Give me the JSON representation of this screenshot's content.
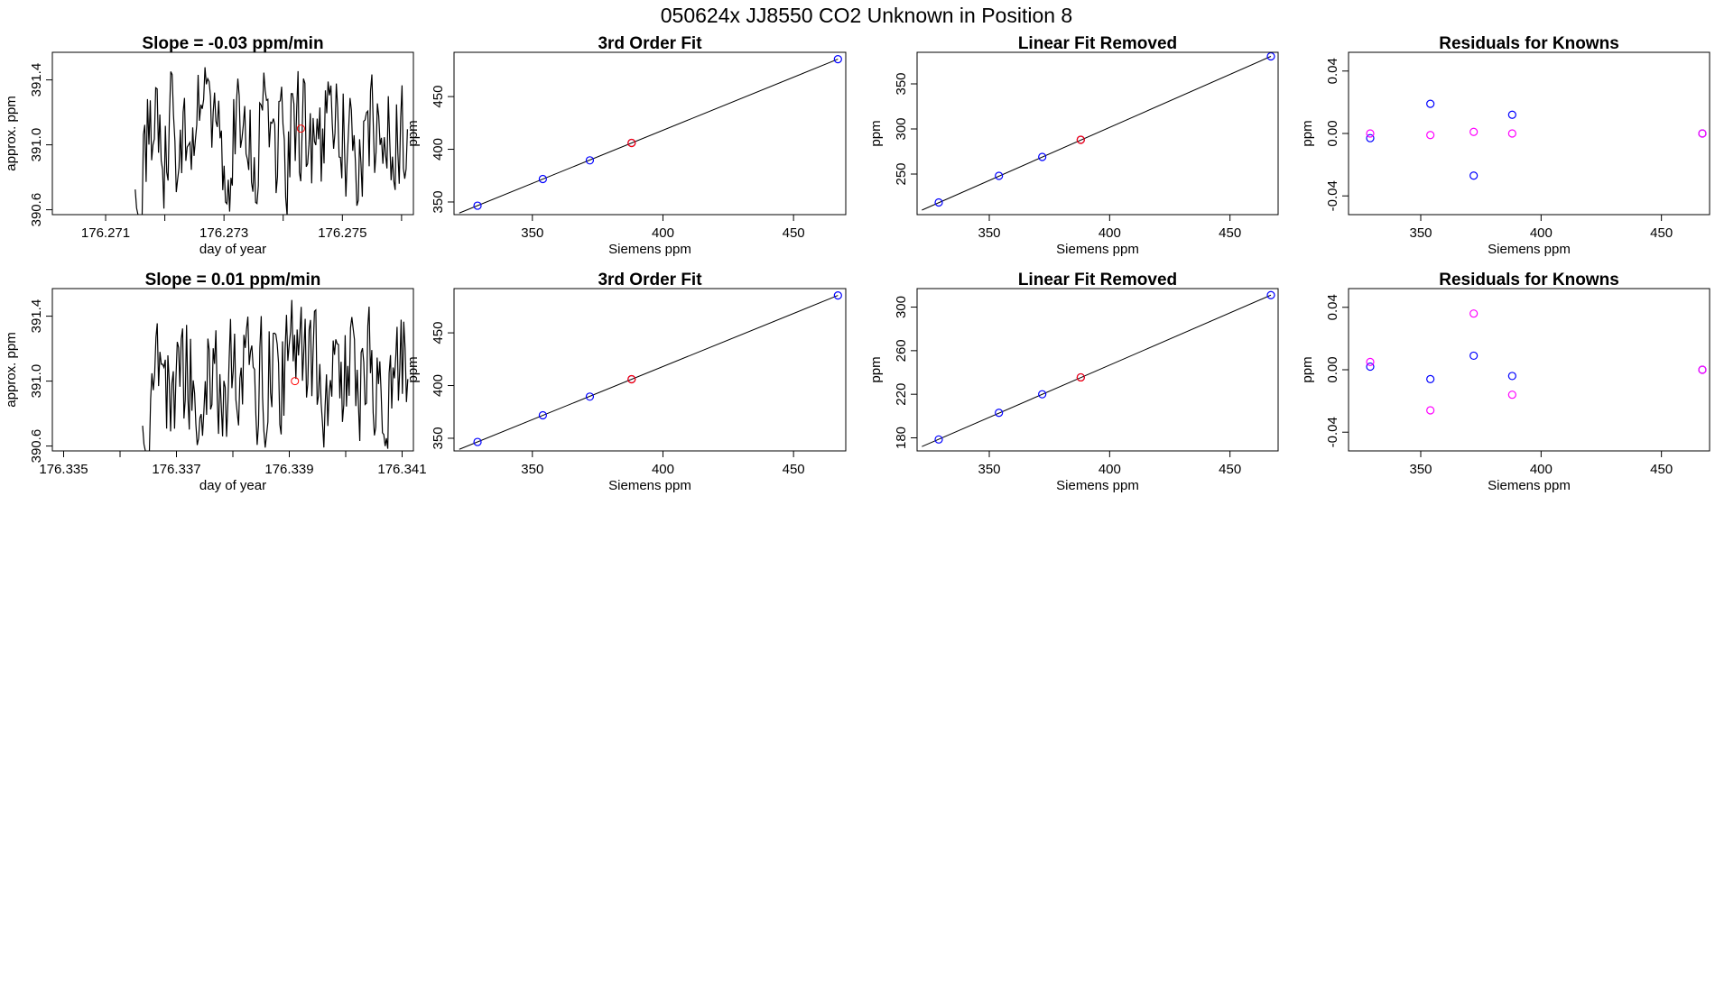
{
  "figure": {
    "title": "050624x      JJ8550   CO2 Unknown in Position  8"
  },
  "colors": {
    "line": "#000000",
    "reference_point": "#ff0000",
    "known_primary": "#0000ff",
    "known_secondary": "#ff00ff"
  },
  "chart_data": [
    {
      "type": "line",
      "title": "Slope =  -0.03  ppm/min",
      "xlabel": "day of year",
      "ylabel": "approx. ppm",
      "xlim": [
        176.2701,
        176.2762
      ],
      "ylim": [
        390.57,
        391.57
      ],
      "xticks": [
        176.271,
        176.272,
        176.273,
        176.274,
        176.275,
        176.276
      ],
      "xtick_labels": [
        "176.271",
        "",
        "176.273",
        "",
        "176.275",
        ""
      ],
      "yticks": [
        390.6,
        391.0,
        391.4
      ],
      "ytick_labels": [
        "390.6",
        "391.0",
        "391.4"
      ],
      "grid": false,
      "trace": {
        "x_start": 176.2715,
        "x_end": 176.2761,
        "n": 200,
        "center": 391.05,
        "spread": 0.58,
        "seed": 8550
      },
      "marker": {
        "x": 176.2743,
        "y": 391.1
      }
    },
    {
      "type": "scatter",
      "title": "3rd Order Fit",
      "xlabel": "Siemens ppm",
      "ylabel": "ppm",
      "xlim": [
        320,
        470
      ],
      "ylim": [
        338,
        492
      ],
      "xticks": [
        350,
        400,
        450
      ],
      "yticks": [
        350,
        400,
        450
      ],
      "grid": false,
      "fit_line": {
        "x": [
          322,
          467
        ],
        "y": [
          339.5,
          485.5
        ]
      },
      "points": [
        {
          "x": 329,
          "y": 346.5,
          "color": "known_primary"
        },
        {
          "x": 354,
          "y": 371.8,
          "color": "known_primary"
        },
        {
          "x": 372,
          "y": 389.5,
          "color": "known_primary"
        },
        {
          "x": 388,
          "y": 406,
          "color": "known_primary"
        },
        {
          "x": 467,
          "y": 485.5,
          "color": "known_primary"
        },
        {
          "x": 388,
          "y": 406,
          "color": "reference_point"
        }
      ]
    },
    {
      "type": "scatter",
      "title": "Linear Fit Removed",
      "xlabel": "Siemens ppm",
      "ylabel": "ppm",
      "xlim": [
        320,
        470
      ],
      "ylim": [
        205,
        385
      ],
      "xticks": [
        350,
        400,
        450
      ],
      "yticks": [
        250,
        300,
        350
      ],
      "grid": false,
      "fit_line": {
        "x": [
          322,
          467
        ],
        "y": [
          210,
          380.5
        ]
      },
      "points": [
        {
          "x": 329,
          "y": 218.5,
          "color": "known_primary"
        },
        {
          "x": 354,
          "y": 248,
          "color": "known_primary"
        },
        {
          "x": 372,
          "y": 269,
          "color": "known_primary"
        },
        {
          "x": 388,
          "y": 288,
          "color": "known_primary"
        },
        {
          "x": 467,
          "y": 380.5,
          "color": "known_primary"
        },
        {
          "x": 388,
          "y": 288,
          "color": "reference_point"
        }
      ]
    },
    {
      "type": "scatter",
      "title": "Residuals for Knowns",
      "xlabel": "Siemens ppm",
      "ylabel": "ppm",
      "xlim": [
        320,
        470
      ],
      "ylim": [
        -0.052,
        0.052
      ],
      "xticks": [
        350,
        400,
        450
      ],
      "yticks": [
        -0.04,
        0.0,
        0.04
      ],
      "ytick_labels": [
        "-0.04",
        "0.00",
        "0.04"
      ],
      "grid": false,
      "points": [
        {
          "x": 329,
          "y": -0.003,
          "color": "known_primary"
        },
        {
          "x": 354,
          "y": 0.019,
          "color": "known_primary"
        },
        {
          "x": 372,
          "y": -0.027,
          "color": "known_primary"
        },
        {
          "x": 388,
          "y": 0.012,
          "color": "known_primary"
        },
        {
          "x": 467,
          "y": 0.0,
          "color": "known_primary"
        },
        {
          "x": 329,
          "y": 0.0,
          "color": "known_secondary"
        },
        {
          "x": 354,
          "y": -0.001,
          "color": "known_secondary"
        },
        {
          "x": 372,
          "y": 0.001,
          "color": "known_secondary"
        },
        {
          "x": 388,
          "y": 0.0,
          "color": "known_secondary"
        },
        {
          "x": 467,
          "y": 0.0,
          "color": "known_secondary"
        }
      ]
    },
    {
      "type": "line",
      "title": "Slope =  0.01  ppm/min",
      "xlabel": "day of year",
      "ylabel": "approx. ppm",
      "xlim": [
        176.3348,
        176.3412
      ],
      "ylim": [
        390.57,
        391.57
      ],
      "xticks": [
        176.335,
        176.336,
        176.337,
        176.338,
        176.339,
        176.34,
        176.341
      ],
      "xtick_labels": [
        "176.335",
        "",
        "176.337",
        "",
        "176.339",
        "",
        "176.341"
      ],
      "yticks": [
        390.6,
        391.0,
        391.4
      ],
      "ytick_labels": [
        "390.6",
        "391.0",
        "391.4"
      ],
      "grid": false,
      "trace": {
        "x_start": 176.3364,
        "x_end": 176.3411,
        "n": 200,
        "center": 391.05,
        "spread": 0.58,
        "seed": 624
      },
      "marker": {
        "x": 176.3391,
        "y": 391.0
      }
    },
    {
      "type": "scatter",
      "title": "3rd Order Fit",
      "xlabel": "Siemens ppm",
      "ylabel": "ppm",
      "xlim": [
        320,
        470
      ],
      "ylim": [
        338,
        492
      ],
      "xticks": [
        350,
        400,
        450
      ],
      "yticks": [
        350,
        400,
        450
      ],
      "grid": false,
      "fit_line": {
        "x": [
          322,
          467
        ],
        "y": [
          339.5,
          485.5
        ]
      },
      "points": [
        {
          "x": 329,
          "y": 346.5,
          "color": "known_primary"
        },
        {
          "x": 354,
          "y": 371.8,
          "color": "known_primary"
        },
        {
          "x": 372,
          "y": 389.5,
          "color": "known_primary"
        },
        {
          "x": 388,
          "y": 406,
          "color": "known_primary"
        },
        {
          "x": 467,
          "y": 485.5,
          "color": "known_primary"
        },
        {
          "x": 388,
          "y": 406,
          "color": "reference_point"
        }
      ]
    },
    {
      "type": "scatter",
      "title": "Linear Fit Removed",
      "xlabel": "Siemens ppm",
      "ylabel": "ppm",
      "xlim": [
        320,
        470
      ],
      "ylim": [
        168,
        317
      ],
      "xticks": [
        350,
        400,
        450
      ],
      "yticks": [
        180,
        220,
        260,
        300
      ],
      "grid": false,
      "fit_line": {
        "x": [
          322,
          467
        ],
        "y": [
          172,
          311
        ]
      },
      "points": [
        {
          "x": 329,
          "y": 178.5,
          "color": "known_primary"
        },
        {
          "x": 354,
          "y": 203,
          "color": "known_primary"
        },
        {
          "x": 372,
          "y": 220,
          "color": "known_primary"
        },
        {
          "x": 388,
          "y": 235.5,
          "color": "known_primary"
        },
        {
          "x": 467,
          "y": 311,
          "color": "known_primary"
        },
        {
          "x": 388,
          "y": 235.5,
          "color": "reference_point"
        }
      ]
    },
    {
      "type": "scatter",
      "title": "Residuals for Knowns",
      "xlabel": "Siemens ppm",
      "ylabel": "ppm",
      "xlim": [
        320,
        470
      ],
      "ylim": [
        -0.052,
        0.052
      ],
      "xticks": [
        350,
        400,
        450
      ],
      "yticks": [
        -0.04,
        0.0,
        0.04
      ],
      "ytick_labels": [
        "-0.04",
        "0.00",
        "0.04"
      ],
      "grid": false,
      "points": [
        {
          "x": 329,
          "y": 0.002,
          "color": "known_primary"
        },
        {
          "x": 354,
          "y": -0.006,
          "color": "known_primary"
        },
        {
          "x": 372,
          "y": 0.009,
          "color": "known_primary"
        },
        {
          "x": 388,
          "y": -0.004,
          "color": "known_primary"
        },
        {
          "x": 467,
          "y": 0.0,
          "color": "known_primary"
        },
        {
          "x": 329,
          "y": 0.005,
          "color": "known_secondary"
        },
        {
          "x": 354,
          "y": -0.026,
          "color": "known_secondary"
        },
        {
          "x": 372,
          "y": 0.036,
          "color": "known_secondary"
        },
        {
          "x": 388,
          "y": -0.016,
          "color": "known_secondary"
        },
        {
          "x": 467,
          "y": 0.0,
          "color": "known_secondary"
        }
      ]
    }
  ]
}
